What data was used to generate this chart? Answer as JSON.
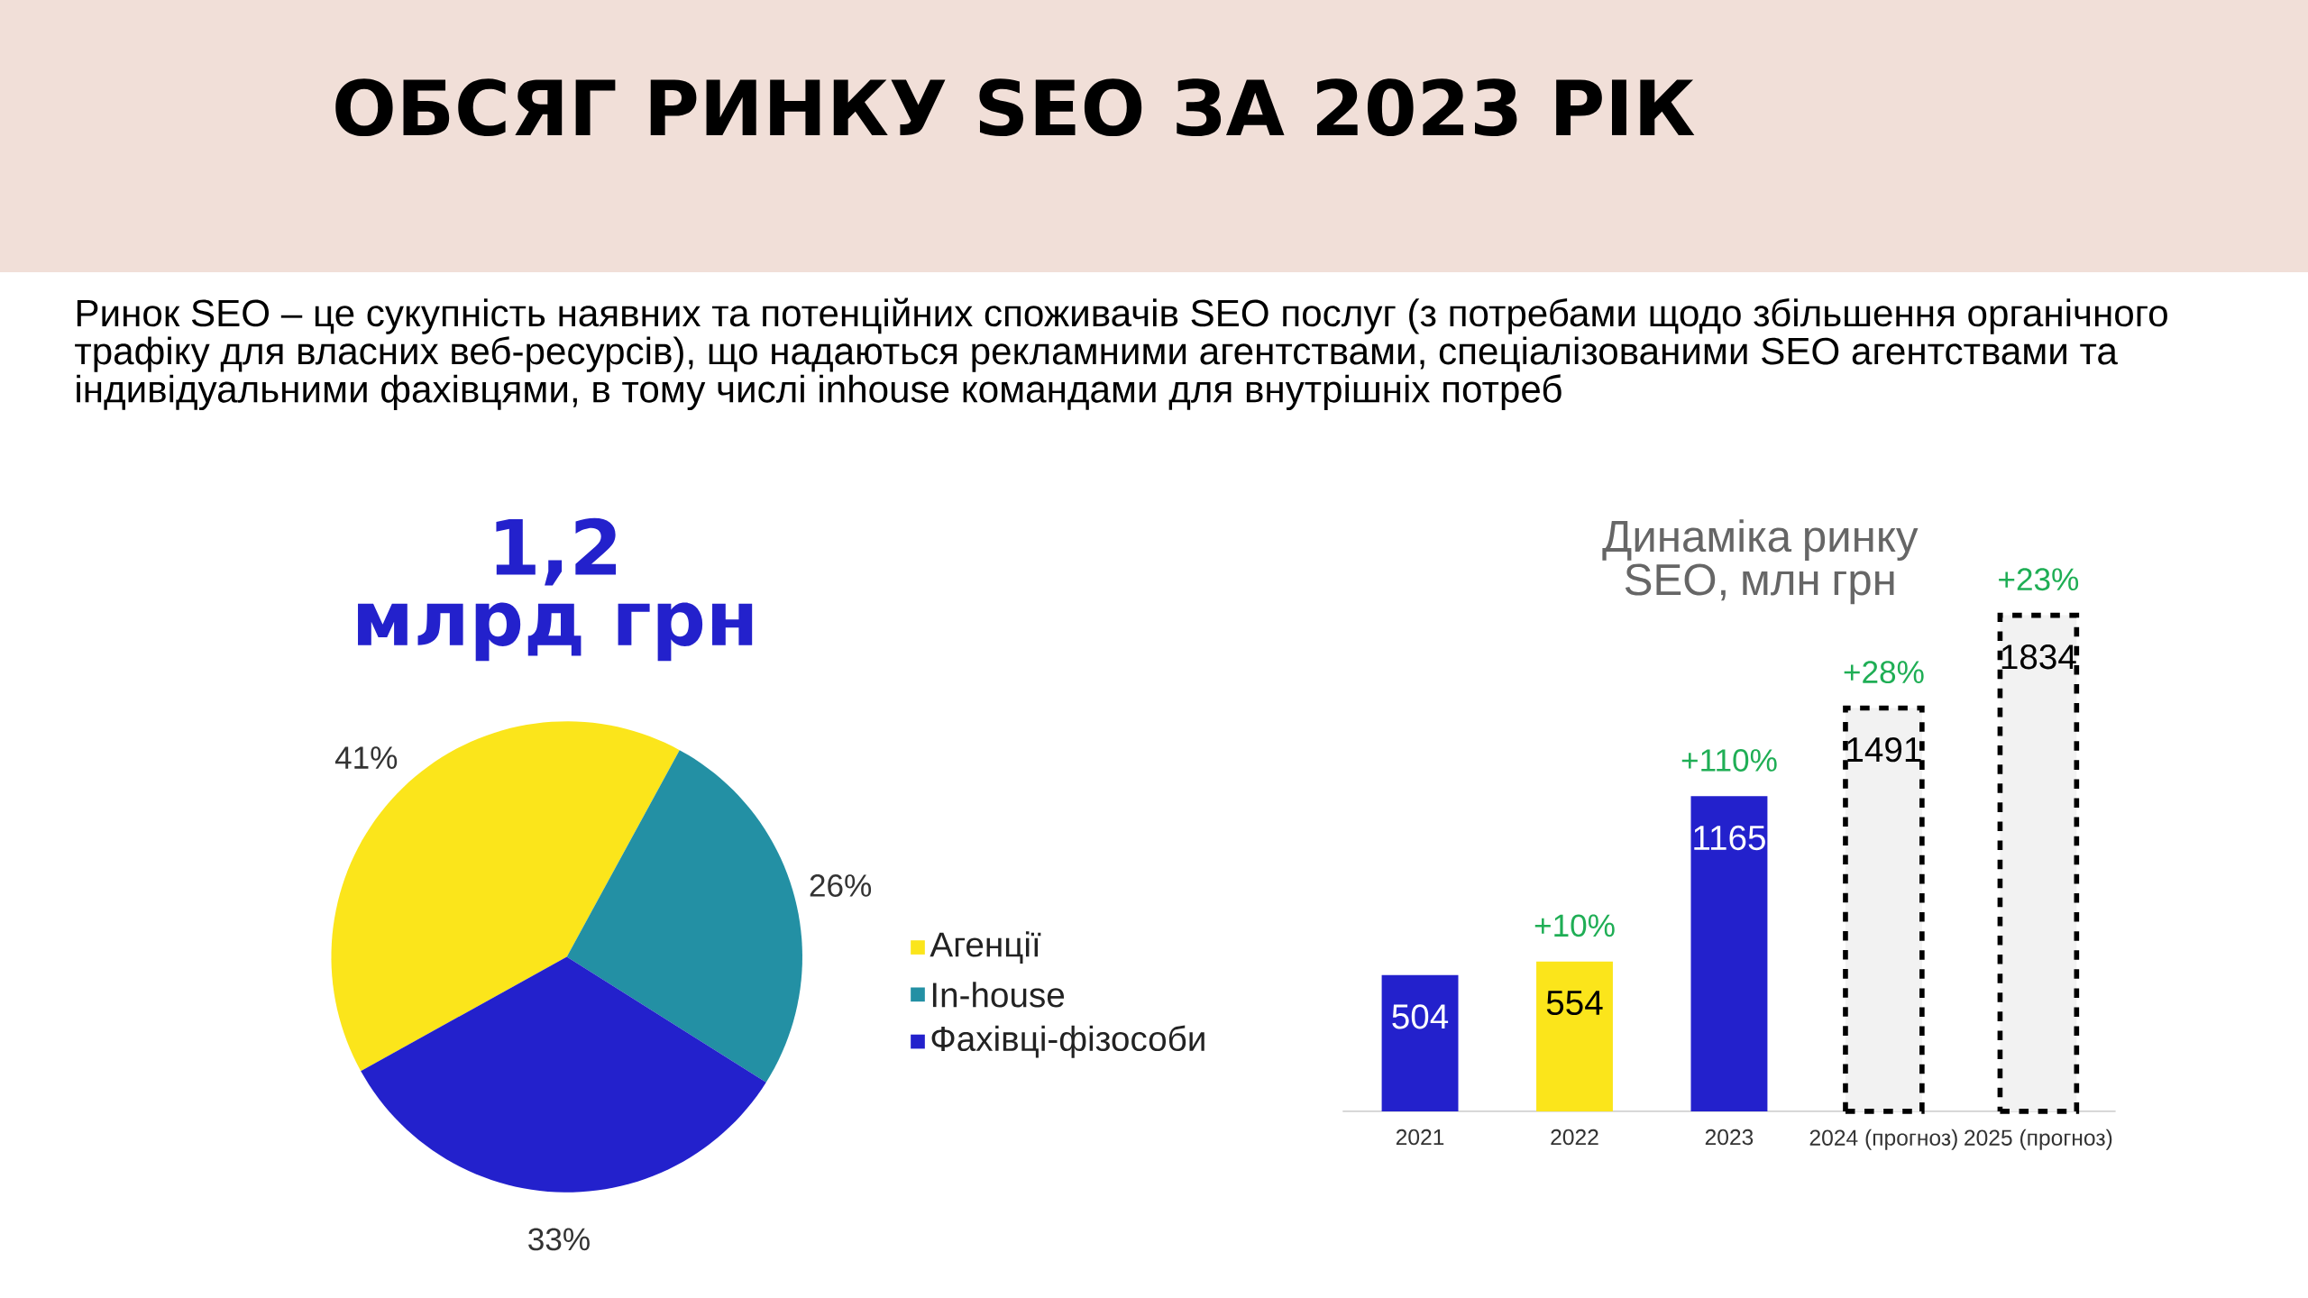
{
  "chart_data": [
    {
      "type": "other",
      "title": "ОБСЯГ РИНКУ SEO ЗА 2023 РІК",
      "subtitle": "Ринок SEO – це сукупність наявних та потенційних споживачів SEO послуг (з потребами щодо збільшення органічного трафіку для власних веб-ресурсів), що надаються рекламними агентствами, спеціалізованими SEO агентствами та індивідуальними фахівцями, в тому числі inhouse командами для внутрішніх потреб"
    },
    {
      "type": "pie",
      "title": "1,2",
      "subtitle": "млрд грн",
      "categories": [
        "Агенції",
        "In-house",
        "Фахівці-фізособи"
      ],
      "values": [
        41,
        26,
        33
      ],
      "colors": [
        "#fbe51b",
        "#2390a4",
        "#2321cc"
      ],
      "value_labels": [
        "41%",
        "26%",
        "33%"
      ],
      "legend": "right"
    },
    {
      "type": "bar",
      "title": "Динаміка ринку SEO, млн грн",
      "categories": [
        "2021",
        "2022",
        "2023",
        "2024 (прогноз)",
        "2025 (прогноз)"
      ],
      "series": [
        {
          "values": [
            504,
            554,
            1165,
            null,
            null
          ],
          "colors": [
            "#2321cc",
            "#fbe51b",
            "#2321cc",
            null,
            null
          ]
        },
        {
          "values": [
            null,
            null,
            null,
            1491,
            1834
          ],
          "color": "#f2f2f2",
          "line_style": "dashed"
        }
      ],
      "data_labels": true,
      "annotations": [
        {
          "text": "+10%",
          "x": "2022",
          "y": 554
        },
        {
          "text": "+110%",
          "x": "2023",
          "y": 1165
        },
        {
          "text": "+28%",
          "x": "2024 (прогноз)",
          "y": 1491
        },
        {
          "text": "+23%",
          "x": "2025 (прогноз)",
          "y": 1834
        }
      ]
    }
  ]
}
